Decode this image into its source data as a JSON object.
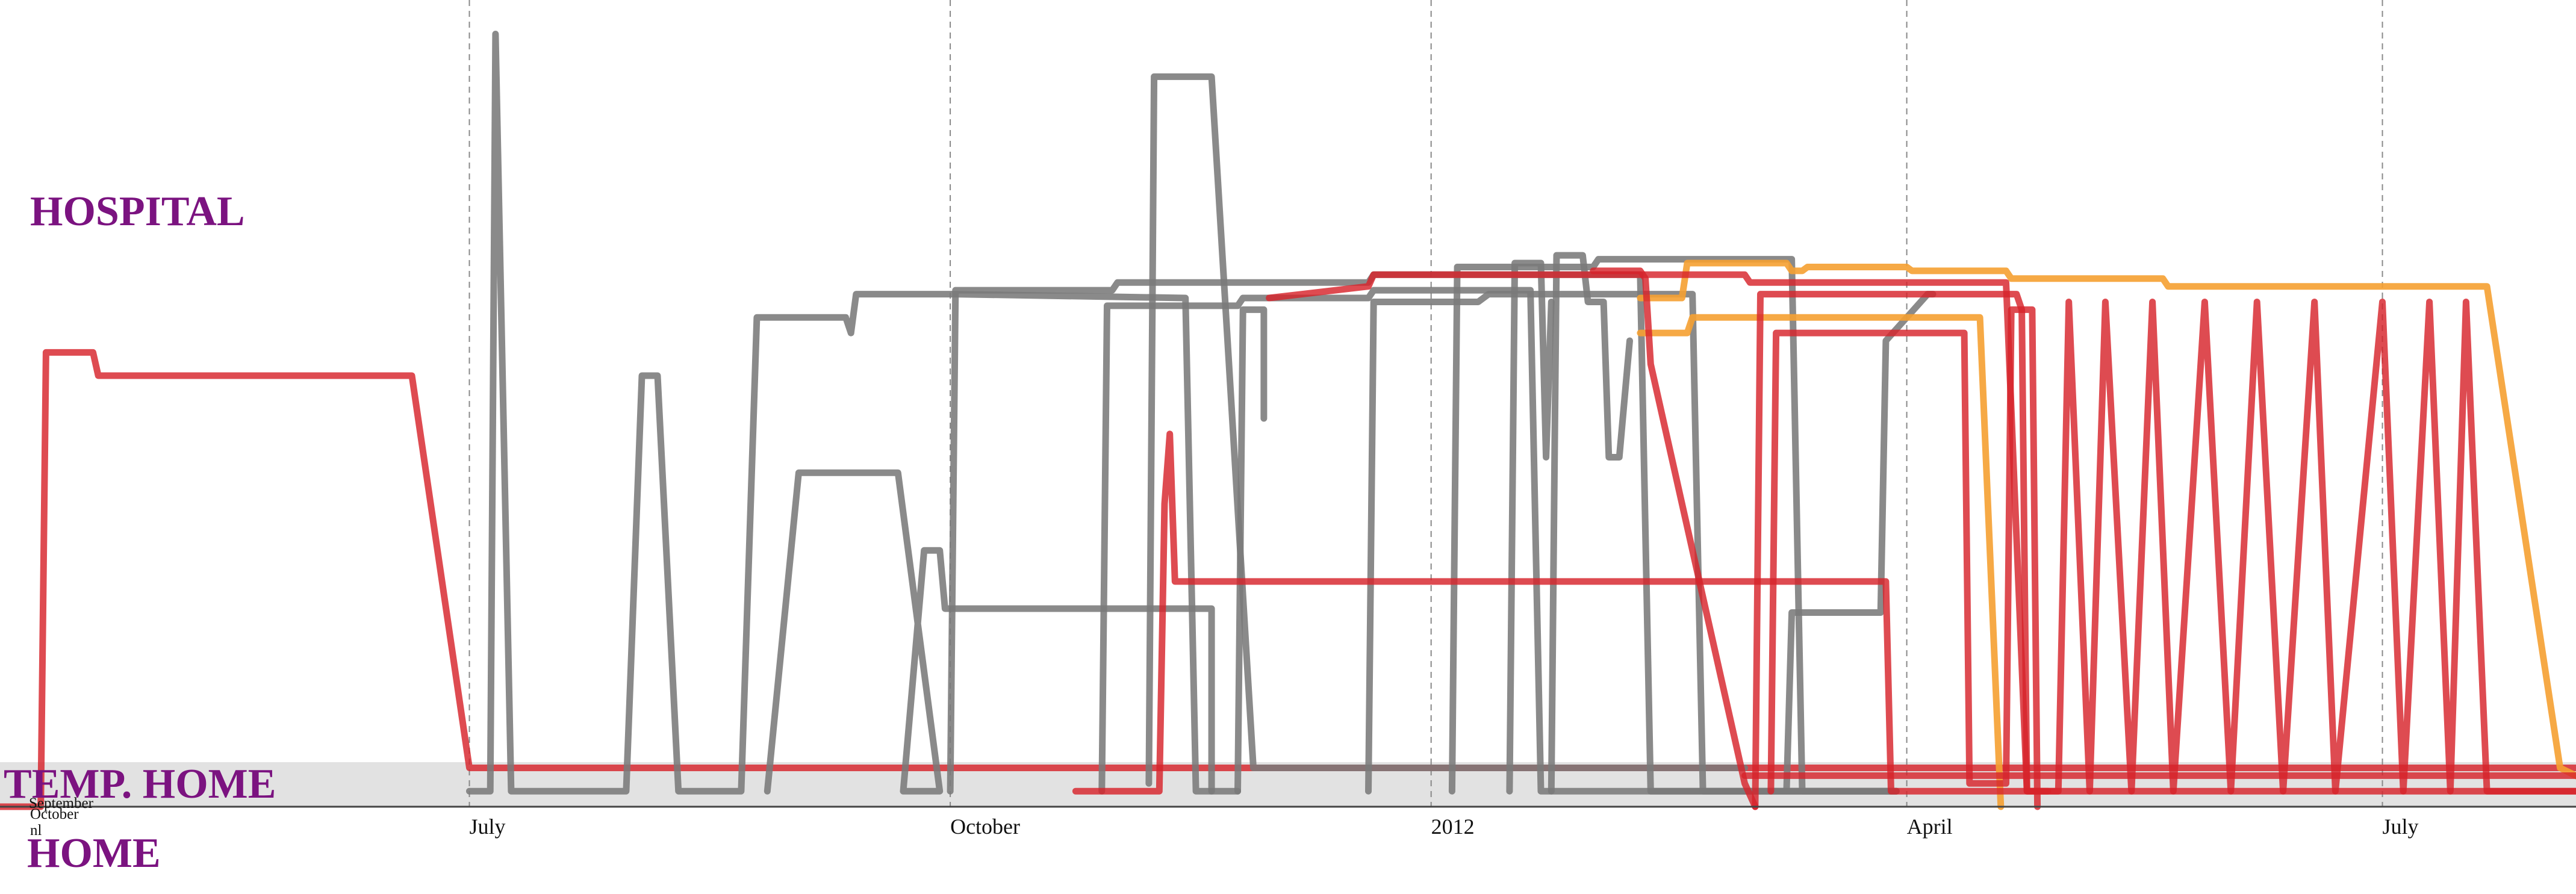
{
  "chart_data": {
    "type": "line",
    "zones": {
      "top": "HOSPITAL",
      "middle": "TEMP. HOME",
      "bottom": "HOME"
    },
    "x_axis": {
      "type": "time",
      "ticks": [
        "July",
        "October",
        "2012",
        "April",
        "July"
      ],
      "tick_dates": [
        "2011-07-01",
        "2011-10-01",
        "2012-01-01",
        "2012-04-01",
        "2012-07-01"
      ],
      "range": [
        "2011-03-05",
        "2012-08-10"
      ],
      "grid": "dashed vertical lines at ticks",
      "stray_labels": [
        "September",
        "October",
        "nl"
      ]
    },
    "y_axis": {
      "range": [
        0,
        1
      ],
      "levels": {
        "HOME": 0,
        "TEMP. HOME": 0.04,
        "HOSPITAL": 1
      }
    },
    "colors": {
      "red": "#d7232b",
      "gray": "#7a7a7a",
      "orange": "#f5a031",
      "zone_band": "#e2e2e2",
      "label": "#7b1380"
    },
    "series": [
      {
        "color": "red",
        "opacity": 0.82,
        "points": [
          [
            "2011-03-01",
            0.0
          ],
          [
            "2011-04-10",
            0.0
          ],
          [
            "2011-04-11",
            0.585
          ],
          [
            "2011-04-20",
            0.585
          ],
          [
            "2011-04-21",
            0.555
          ],
          [
            "2011-06-20",
            0.555
          ],
          [
            "2011-07-01",
            0.05
          ],
          [
            "2012-08-10",
            0.05
          ]
        ]
      },
      {
        "color": "gray",
        "opacity": 0.88,
        "points": [
          [
            "2011-07-01",
            0.02
          ],
          [
            "2011-07-05",
            0.02
          ],
          [
            "2011-07-06",
            0.995
          ],
          [
            "2011-07-09",
            0.02
          ],
          [
            "2011-07-31",
            0.02
          ],
          [
            "2011-08-03",
            0.555
          ],
          [
            "2011-08-06",
            0.555
          ],
          [
            "2011-08-10",
            0.02
          ],
          [
            "2011-08-22",
            0.02
          ],
          [
            "2011-08-25",
            0.63
          ],
          [
            "2011-09-11",
            0.63
          ],
          [
            "2011-09-12",
            0.61
          ],
          [
            "2011-09-13",
            0.66
          ],
          [
            "2011-10-01",
            0.66
          ],
          [
            "2011-10-02",
            0.66
          ],
          [
            "2011-11-15",
            0.655
          ],
          [
            "2011-11-17",
            0.02
          ],
          [
            "2011-11-25",
            0.02
          ]
        ]
      },
      {
        "color": "gray",
        "opacity": 0.88,
        "points": [
          [
            "2011-08-27",
            0.02
          ],
          [
            "2011-09-02",
            0.43
          ],
          [
            "2011-09-21",
            0.43
          ],
          [
            "2011-09-29",
            0.02
          ],
          [
            "2011-09-22",
            0.02
          ],
          [
            "2011-09-26",
            0.33
          ],
          [
            "2011-09-29",
            0.33
          ],
          [
            "2011-09-30",
            0.255
          ],
          [
            "2011-11-20",
            0.255
          ],
          [
            "2011-11-20",
            0.02
          ]
        ]
      },
      {
        "color": "gray",
        "opacity": 0.88,
        "points": [
          [
            "2011-10-01",
            0.02
          ],
          [
            "2011-10-02",
            0.665
          ],
          [
            "2011-11-01",
            0.665
          ],
          [
            "2011-11-02",
            0.675
          ],
          [
            "2011-12-20",
            0.675
          ],
          [
            "2011-12-21",
            0.685
          ],
          [
            "2012-02-10",
            0.685
          ],
          [
            "2012-02-12",
            0.02
          ],
          [
            "2012-03-30",
            0.02
          ]
        ]
      },
      {
        "color": "gray",
        "opacity": 0.88,
        "points": [
          [
            "2011-10-30",
            0.02
          ],
          [
            "2011-10-31",
            0.645
          ],
          [
            "2011-11-25",
            0.645
          ],
          [
            "2011-11-26",
            0.655
          ],
          [
            "2011-12-20",
            0.655
          ],
          [
            "2011-12-21",
            0.665
          ],
          [
            "2012-01-20",
            0.665
          ],
          [
            "2012-01-22",
            0.02
          ],
          [
            "2012-03-30",
            0.02
          ]
        ]
      },
      {
        "color": "gray",
        "opacity": 0.88,
        "points": [
          [
            "2011-11-08",
            0.03
          ],
          [
            "2011-11-09",
            0.94
          ],
          [
            "2011-11-20",
            0.94
          ],
          [
            "2011-11-28",
            0.05
          ],
          [
            "2011-12-01",
            0.05
          ],
          [
            "2012-03-01",
            0.05
          ]
        ]
      },
      {
        "color": "gray",
        "opacity": 0.88,
        "points": [
          [
            "2011-11-25",
            0.02
          ],
          [
            "2011-11-26",
            0.64
          ],
          [
            "2011-11-30",
            0.64
          ],
          [
            "2011-11-30",
            0.5
          ]
        ]
      },
      {
        "color": "gray",
        "opacity": 0.88,
        "points": [
          [
            "2011-12-20",
            0.02
          ],
          [
            "2011-12-21",
            0.65
          ],
          [
            "2012-01-10",
            0.65
          ],
          [
            "2012-01-12",
            0.66
          ],
          [
            "2012-02-20",
            0.66
          ],
          [
            "2012-02-22",
            0.02
          ],
          [
            "2012-03-30",
            0.02
          ]
        ]
      },
      {
        "color": "gray",
        "opacity": 0.88,
        "points": [
          [
            "2012-01-05",
            0.02
          ],
          [
            "2012-01-06",
            0.695
          ],
          [
            "2012-02-01",
            0.695
          ],
          [
            "2012-02-02",
            0.705
          ],
          [
            "2012-03-10",
            0.705
          ],
          [
            "2012-03-12",
            0.02
          ],
          [
            "2012-03-30",
            0.02
          ]
        ]
      },
      {
        "color": "gray",
        "opacity": 0.88,
        "points": [
          [
            "2012-01-16",
            0.02
          ],
          [
            "2012-01-17",
            0.7
          ],
          [
            "2012-01-22",
            0.7
          ],
          [
            "2012-01-23",
            0.45
          ],
          [
            "2012-01-24",
            0.65
          ]
        ]
      },
      {
        "color": "gray",
        "opacity": 0.88,
        "points": [
          [
            "2012-01-24",
            0.02
          ],
          [
            "2012-01-25",
            0.71
          ],
          [
            "2012-01-30",
            0.71
          ],
          [
            "2012-01-31",
            0.65
          ],
          [
            "2012-02-03",
            0.65
          ],
          [
            "2012-02-04",
            0.45
          ],
          [
            "2012-02-06",
            0.45
          ],
          [
            "2012-02-08",
            0.6
          ]
        ]
      },
      {
        "color": "gray",
        "opacity": 0.88,
        "points": [
          [
            "2012-03-09",
            0.02
          ],
          [
            "2012-03-10",
            0.25
          ],
          [
            "2012-03-27",
            0.25
          ],
          [
            "2012-03-28",
            0.6
          ],
          [
            "2012-04-05",
            0.66
          ],
          [
            "2012-04-06",
            0.66
          ]
        ]
      },
      {
        "color": "orange",
        "opacity": 0.9,
        "points": [
          [
            "2012-02-10",
            0.655
          ],
          [
            "2012-02-18",
            0.655
          ],
          [
            "2012-02-19",
            0.7
          ],
          [
            "2012-03-09",
            0.7
          ],
          [
            "2012-03-10",
            0.69
          ],
          [
            "2012-03-12",
            0.69
          ],
          [
            "2012-03-13",
            0.695
          ],
          [
            "2012-04-01",
            0.695
          ],
          [
            "2012-04-02",
            0.69
          ],
          [
            "2012-04-20",
            0.69
          ],
          [
            "2012-04-21",
            0.68
          ],
          [
            "2012-05-20",
            0.68
          ],
          [
            "2012-05-21",
            0.67
          ],
          [
            "2012-07-10",
            0.67
          ],
          [
            "2012-07-21",
            0.67
          ],
          [
            "2012-08-04",
            0.05
          ],
          [
            "2012-08-10",
            0.03
          ]
        ]
      },
      {
        "color": "orange",
        "opacity": 0.9,
        "points": [
          [
            "2012-02-10",
            0.61
          ],
          [
            "2012-02-19",
            0.61
          ],
          [
            "2012-02-20",
            0.63
          ],
          [
            "2012-04-10",
            0.63
          ],
          [
            "2012-04-15",
            0.63
          ],
          [
            "2012-04-19",
            0.0
          ]
        ]
      },
      {
        "color": "red",
        "opacity": 0.82,
        "points": [
          [
            "2011-10-25",
            0.02
          ],
          [
            "2011-11-10",
            0.02
          ],
          [
            "2011-11-11",
            0.39
          ],
          [
            "2011-11-12",
            0.48
          ],
          [
            "2011-11-13",
            0.29
          ],
          [
            "2012-03-28",
            0.29
          ],
          [
            "2012-03-29",
            0.02
          ],
          [
            "2012-08-10",
            0.02
          ]
        ]
      },
      {
        "color": "red",
        "opacity": 0.82,
        "points": [
          [
            "2011-12-01",
            0.655
          ],
          [
            "2011-12-20",
            0.67
          ],
          [
            "2011-12-21",
            0.685
          ],
          [
            "2012-03-01",
            0.685
          ],
          [
            "2012-03-02",
            0.675
          ],
          [
            "2012-04-20",
            0.675
          ],
          [
            "2012-04-24",
            0.02
          ],
          [
            "2012-04-28",
            0.02
          ]
        ]
      },
      {
        "color": "red",
        "opacity": 0.82,
        "points": [
          [
            "2012-02-01",
            0.69
          ],
          [
            "2012-02-10",
            0.69
          ],
          [
            "2012-02-11",
            0.68
          ],
          [
            "2012-02-12",
            0.57
          ],
          [
            "2012-03-01",
            0.03
          ],
          [
            "2012-03-03",
            0.0
          ]
        ]
      },
      {
        "color": "red",
        "opacity": 0.82,
        "points": [
          [
            "2012-03-03",
            0.0
          ],
          [
            "2012-03-04",
            0.66
          ],
          [
            "2012-04-22",
            0.66
          ],
          [
            "2012-04-23",
            0.64
          ],
          [
            "2012-04-24",
            0.02
          ],
          [
            "2012-04-30",
            0.02
          ],
          [
            "2012-05-02",
            0.65
          ],
          [
            "2012-05-06",
            0.02
          ],
          [
            "2012-05-09",
            0.65
          ],
          [
            "2012-05-14",
            0.02
          ],
          [
            "2012-05-18",
            0.65
          ],
          [
            "2012-05-22",
            0.02
          ],
          [
            "2012-05-28",
            0.65
          ],
          [
            "2012-06-02",
            0.02
          ],
          [
            "2012-06-07",
            0.65
          ],
          [
            "2012-06-12",
            0.02
          ],
          [
            "2012-06-18",
            0.65
          ],
          [
            "2012-06-22",
            0.02
          ],
          [
            "2012-07-01",
            0.65
          ],
          [
            "2012-07-05",
            0.02
          ],
          [
            "2012-07-10",
            0.65
          ],
          [
            "2012-07-14",
            0.02
          ],
          [
            "2012-07-17",
            0.65
          ],
          [
            "2012-07-21",
            0.02
          ],
          [
            "2012-08-10",
            0.02
          ]
        ]
      },
      {
        "color": "red",
        "opacity": 0.82,
        "points": [
          [
            "2012-03-06",
            0.02
          ],
          [
            "2012-03-07",
            0.61
          ],
          [
            "2012-04-12",
            0.61
          ],
          [
            "2012-04-13",
            0.03
          ],
          [
            "2012-04-20",
            0.03
          ],
          [
            "2012-04-21",
            0.64
          ],
          [
            "2012-04-25",
            0.64
          ],
          [
            "2012-04-26",
            0.0
          ]
        ]
      },
      {
        "color": "red",
        "opacity": 0.82,
        "points": [
          [
            "2012-03-01",
            0.04
          ],
          [
            "2012-04-05",
            0.04
          ],
          [
            "2012-08-10",
            0.04
          ]
        ]
      }
    ]
  }
}
